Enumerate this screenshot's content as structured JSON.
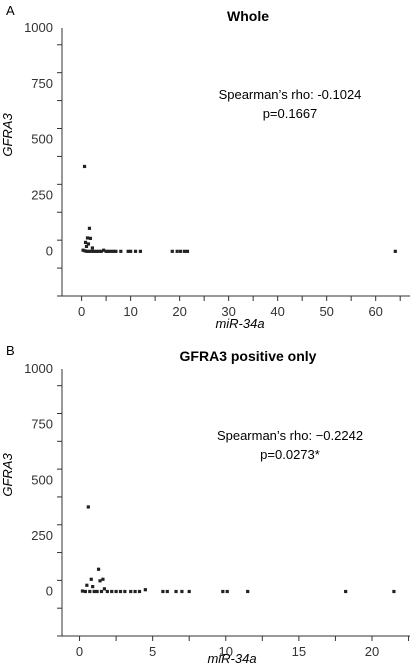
{
  "chart_data": [
    {
      "type": "scatter",
      "panel_label": "A",
      "title": "Whole",
      "xlabel": "miR-34a",
      "ylabel": "GFRA3",
      "xlim": [
        -4,
        67
      ],
      "ylim": [
        -200,
        1000
      ],
      "xticks": [
        0,
        10,
        20,
        30,
        40,
        50,
        60
      ],
      "yticks": [
        0,
        250,
        500,
        750,
        1000
      ],
      "annotations": [
        "Spearman’s rho: -0.1024",
        "p=0.1667"
      ],
      "marker_color": "#222222",
      "series": [
        {
          "points": [
            [
              0.6,
              380
            ],
            [
              1.6,
              103
            ],
            [
              1.2,
              60
            ],
            [
              1.8,
              58
            ],
            [
              0.8,
              40
            ],
            [
              1.4,
              33
            ],
            [
              1.0,
              22
            ],
            [
              2.2,
              15
            ],
            [
              0.3,
              5
            ],
            [
              0.7,
              2
            ],
            [
              1.1,
              0
            ],
            [
              1.5,
              0
            ],
            [
              2.0,
              0
            ],
            [
              2.5,
              0
            ],
            [
              3.0,
              0
            ],
            [
              3.5,
              0
            ],
            [
              4.0,
              0
            ],
            [
              4.5,
              5
            ],
            [
              5.0,
              0
            ],
            [
              5.5,
              0
            ],
            [
              6.0,
              0
            ],
            [
              6.5,
              0
            ],
            [
              7.0,
              0
            ],
            [
              8.0,
              0
            ],
            [
              9.5,
              0
            ],
            [
              10.0,
              0
            ],
            [
              11.0,
              0
            ],
            [
              12.0,
              0
            ],
            [
              18.5,
              0
            ],
            [
              19.5,
              0
            ],
            [
              20.2,
              0
            ],
            [
              21.0,
              0
            ],
            [
              21.6,
              0
            ],
            [
              64.0,
              0
            ]
          ]
        }
      ]
    },
    {
      "type": "scatter",
      "panel_label": "B",
      "title": "GFRA3 positive only",
      "xlabel": "miR-34a",
      "ylabel": "GFRA3",
      "xlim": [
        -1.2,
        22.6
      ],
      "ylim": [
        -200,
        1000
      ],
      "xticks": [
        0,
        5,
        10,
        15,
        20
      ],
      "yticks": [
        0,
        250,
        500,
        750,
        1000
      ],
      "annotations": [
        "Spearman’s rho: −0.2242",
        "p=0.0273*"
      ],
      "marker_color": "#222222",
      "series": [
        {
          "points": [
            [
              0.6,
              380
            ],
            [
              1.3,
              100
            ],
            [
              1.6,
              55
            ],
            [
              0.8,
              55
            ],
            [
              1.4,
              48
            ],
            [
              0.5,
              28
            ],
            [
              0.9,
              22
            ],
            [
              1.7,
              12
            ],
            [
              0.2,
              2
            ],
            [
              0.4,
              0
            ],
            [
              0.7,
              0
            ],
            [
              1.0,
              0
            ],
            [
              1.2,
              0
            ],
            [
              1.5,
              0
            ],
            [
              1.9,
              0
            ],
            [
              2.2,
              0
            ],
            [
              2.5,
              0
            ],
            [
              2.8,
              0
            ],
            [
              3.1,
              0
            ],
            [
              3.5,
              0
            ],
            [
              3.8,
              0
            ],
            [
              4.1,
              0
            ],
            [
              4.5,
              8
            ],
            [
              5.7,
              0
            ],
            [
              6.0,
              0
            ],
            [
              6.6,
              0
            ],
            [
              7.0,
              0
            ],
            [
              7.5,
              0
            ],
            [
              9.8,
              0
            ],
            [
              10.1,
              0
            ],
            [
              11.5,
              0
            ],
            [
              18.2,
              0
            ],
            [
              21.5,
              0
            ]
          ]
        }
      ]
    }
  ]
}
